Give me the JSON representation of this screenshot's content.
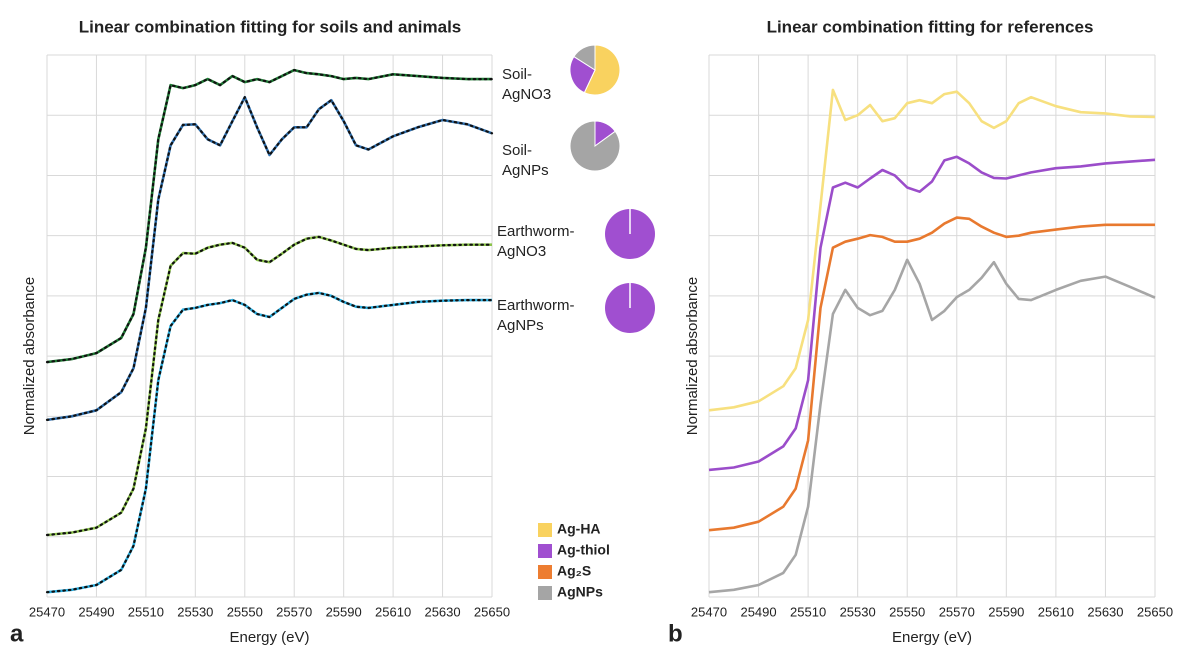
{
  "chart_data": [
    {
      "type": "line",
      "panel_label": "a",
      "title": "Linear combination fitting for soils and animals",
      "xlabel": "Energy (eV)",
      "ylabel": "Normalized absorbance",
      "xlim": [
        25470,
        25650
      ],
      "xticks": [
        25470,
        25490,
        25510,
        25530,
        25550,
        25570,
        25590,
        25610,
        25630,
        25650
      ],
      "ylim": [
        0,
        9
      ],
      "yticks": [
        0,
        1,
        2,
        3,
        4,
        5,
        6,
        7,
        8,
        9
      ],
      "grid": true,
      "data_dots": true,
      "x": [
        25470,
        25480,
        25490,
        25500,
        25505,
        25510,
        25515,
        25520,
        25525,
        25530,
        25535,
        25540,
        25545,
        25550,
        25555,
        25560,
        25565,
        25570,
        25575,
        25580,
        25585,
        25590,
        25595,
        25600,
        25610,
        25620,
        25630,
        25640,
        25650
      ],
      "series": [
        {
          "color": "#1e7b34",
          "values": [
            3.9,
            3.95,
            4.05,
            4.3,
            4.7,
            5.8,
            7.6,
            8.5,
            8.45,
            8.5,
            8.6,
            8.5,
            8.65,
            8.55,
            8.6,
            8.55,
            8.65,
            8.75,
            8.7,
            8.68,
            8.65,
            8.6,
            8.62,
            8.6,
            8.68,
            8.65,
            8.62,
            8.6,
            8.6
          ]
        },
        {
          "color": "#2e6fae",
          "values": [
            2.94,
            3.0,
            3.1,
            3.4,
            3.8,
            4.8,
            6.6,
            7.5,
            7.84,
            7.85,
            7.6,
            7.5,
            7.9,
            8.3,
            7.8,
            7.34,
            7.6,
            7.8,
            7.8,
            8.1,
            8.25,
            7.9,
            7.5,
            7.43,
            7.65,
            7.8,
            7.92,
            7.85,
            7.7
          ]
        },
        {
          "color": "#8bc34a",
          "values": [
            1.03,
            1.07,
            1.15,
            1.4,
            1.8,
            2.8,
            4.6,
            5.5,
            5.71,
            5.7,
            5.8,
            5.85,
            5.88,
            5.8,
            5.6,
            5.56,
            5.7,
            5.85,
            5.95,
            5.98,
            5.92,
            5.85,
            5.78,
            5.76,
            5.8,
            5.82,
            5.84,
            5.85,
            5.85
          ]
        },
        {
          "color": "#29aee0",
          "values": [
            0.08,
            0.12,
            0.2,
            0.45,
            0.85,
            1.8,
            3.6,
            4.5,
            4.77,
            4.8,
            4.85,
            4.88,
            4.93,
            4.85,
            4.7,
            4.65,
            4.8,
            4.95,
            5.02,
            5.05,
            5.0,
            4.9,
            4.82,
            4.8,
            4.85,
            4.9,
            4.92,
            4.93,
            4.93
          ]
        }
      ],
      "components": [
        {
          "name": "Ag-HA",
          "color": "#f9d25f"
        },
        {
          "name": "Ag-thiol",
          "color": "#a04fd0"
        },
        {
          "name": "Ag₂S",
          "color": "#ed7d31"
        },
        {
          "name": "AgNPs",
          "color": "#a5a5a5"
        }
      ],
      "pies": [
        {
          "label": [
            "Soil-",
            "AgNO3"
          ],
          "values": [
            57,
            27,
            0,
            16
          ]
        },
        {
          "label": [
            "Soil-",
            "AgNPs"
          ],
          "values": [
            0,
            15,
            0,
            85
          ]
        },
        {
          "label": [
            "Earthworm-",
            "AgNO3"
          ],
          "values": [
            0,
            100,
            0,
            0
          ]
        },
        {
          "label": [
            "Earthworm-",
            "AgNPs"
          ],
          "values": [
            0,
            100,
            0,
            0
          ]
        }
      ]
    },
    {
      "type": "line",
      "panel_label": "b",
      "title": "Linear combination fitting for references",
      "xlabel": "Energy (eV)",
      "ylabel": "Normalized absorbance",
      "xlim": [
        25470,
        25650
      ],
      "xticks": [
        25470,
        25490,
        25510,
        25530,
        25550,
        25570,
        25590,
        25610,
        25630,
        25650
      ],
      "ylim": [
        0,
        9
      ],
      "yticks": [
        0,
        1,
        2,
        3,
        4,
        5,
        6,
        7,
        8,
        9
      ],
      "grid": true,
      "x": [
        25470,
        25480,
        25490,
        25500,
        25505,
        25510,
        25515,
        25520,
        25525,
        25530,
        25535,
        25540,
        25545,
        25550,
        25555,
        25560,
        25565,
        25570,
        25575,
        25580,
        25585,
        25590,
        25595,
        25600,
        25610,
        25620,
        25630,
        25640,
        25650
      ],
      "series": [
        {
          "color": "#f7e07f",
          "values": [
            3.1,
            3.15,
            3.25,
            3.5,
            3.8,
            4.6,
            6.5,
            8.42,
            7.92,
            8.0,
            8.17,
            7.9,
            7.95,
            8.2,
            8.25,
            8.2,
            8.35,
            8.39,
            8.2,
            7.9,
            7.79,
            7.9,
            8.2,
            8.3,
            8.15,
            8.05,
            8.03,
            7.98,
            7.97
          ]
        },
        {
          "color": "#9b4dca",
          "values": [
            2.11,
            2.15,
            2.25,
            2.5,
            2.8,
            3.6,
            5.8,
            6.8,
            6.88,
            6.8,
            6.95,
            7.09,
            7.0,
            6.8,
            6.73,
            6.9,
            7.25,
            7.31,
            7.2,
            7.05,
            6.96,
            6.95,
            7.0,
            7.05,
            7.12,
            7.15,
            7.2,
            7.23,
            7.26
          ]
        },
        {
          "color": "#e8792f",
          "values": [
            1.11,
            1.15,
            1.25,
            1.5,
            1.8,
            2.6,
            4.8,
            5.8,
            5.9,
            5.95,
            6.01,
            5.98,
            5.9,
            5.9,
            5.95,
            6.05,
            6.2,
            6.3,
            6.28,
            6.15,
            6.05,
            5.98,
            6.0,
            6.05,
            6.1,
            6.15,
            6.18,
            6.18,
            6.18
          ]
        },
        {
          "color": "#a6a6a6",
          "values": [
            0.08,
            0.12,
            0.2,
            0.4,
            0.7,
            1.5,
            3.2,
            4.7,
            5.1,
            4.8,
            4.68,
            4.75,
            5.1,
            5.6,
            5.2,
            4.6,
            4.75,
            4.98,
            5.1,
            5.3,
            5.56,
            5.2,
            4.95,
            4.93,
            5.1,
            5.25,
            5.32,
            5.15,
            4.97
          ]
        }
      ]
    }
  ]
}
